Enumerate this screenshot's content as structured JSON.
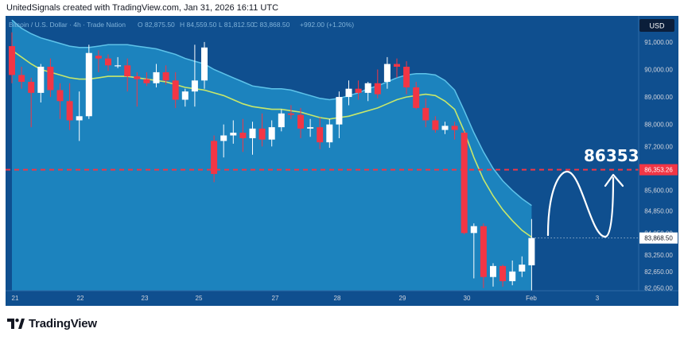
{
  "header": {
    "attribution": "UnitedSignals created with TradingView.com, Jan 31, 2026 16:11 UTC"
  },
  "legend": {
    "symbol": "Bitcoin / U.S. Dollar · 4h · Trade Nation",
    "open": "O 82,875.50",
    "high": "H 84,559.50",
    "low": "L 81,812.50",
    "close": "C 83,868.50",
    "change": "+992.00 (+1.20%)"
  },
  "currency_label": "USD",
  "logo": {
    "text": "TradingView"
  },
  "annotation": {
    "target_text": "86353"
  },
  "colors": {
    "background": "#0f4f8f",
    "band_fill": "#1d86c1",
    "band_top": "#5ec3ea",
    "ma_line": "#c8e86a",
    "up_candle": "#ffffff",
    "down_candle": "#f23645",
    "target_line": "#f23645",
    "price_tag": "#f23645",
    "axis_text": "#d1d4dc"
  },
  "chart_data": {
    "type": "candlestick",
    "title": "",
    "timeframe": "4h",
    "x_ticks": [
      "21",
      "22",
      "23",
      "25",
      "27",
      "28",
      "29",
      "30",
      "Feb",
      "3"
    ],
    "y_ticks": [
      "91,000.00",
      "90,000.00",
      "89,000.00",
      "88,000.00",
      "87,200.00",
      "85,600.00",
      "84,850.00",
      "84,050.00",
      "83,250.00",
      "82,650.00",
      "82,050.00"
    ],
    "ylim": [
      81950,
      91950
    ],
    "target_level": 86353.26,
    "target_label": "86,353.26",
    "current_price": 83868.5,
    "current_label": "83,868.50",
    "candles": [
      {
        "o": 90850,
        "h": 91350,
        "l": 89500,
        "c": 89800
      },
      {
        "o": 89800,
        "h": 90100,
        "l": 89300,
        "c": 89550
      },
      {
        "o": 89550,
        "h": 89700,
        "l": 87900,
        "c": 89150
      },
      {
        "o": 89150,
        "h": 90200,
        "l": 88800,
        "c": 90100
      },
      {
        "o": 90100,
        "h": 90400,
        "l": 89000,
        "c": 89250
      },
      {
        "o": 89250,
        "h": 89500,
        "l": 88200,
        "c": 88850
      },
      {
        "o": 88850,
        "h": 89500,
        "l": 87800,
        "c": 88150
      },
      {
        "o": 88150,
        "h": 89200,
        "l": 87400,
        "c": 88300
      },
      {
        "o": 88300,
        "h": 90900,
        "l": 88200,
        "c": 90600
      },
      {
        "o": 90500,
        "h": 90700,
        "l": 89900,
        "c": 90400
      },
      {
        "o": 90400,
        "h": 90550,
        "l": 89950,
        "c": 90150
      },
      {
        "o": 90150,
        "h": 90450,
        "l": 90050,
        "c": 90150
      },
      {
        "o": 90150,
        "h": 90400,
        "l": 89200,
        "c": 89750
      },
      {
        "o": 89750,
        "h": 89900,
        "l": 88650,
        "c": 89650
      },
      {
        "o": 89650,
        "h": 89900,
        "l": 89400,
        "c": 89500
      },
      {
        "o": 89500,
        "h": 90200,
        "l": 89350,
        "c": 89900
      },
      {
        "o": 89900,
        "h": 90150,
        "l": 89450,
        "c": 89600
      },
      {
        "o": 89600,
        "h": 89900,
        "l": 88600,
        "c": 88900
      },
      {
        "o": 88900,
        "h": 89300,
        "l": 88650,
        "c": 89200
      },
      {
        "o": 89200,
        "h": 90900,
        "l": 88650,
        "c": 89600
      },
      {
        "o": 89600,
        "h": 91000,
        "l": 89300,
        "c": 90800
      },
      {
        "o": 87400,
        "h": 87600,
        "l": 85900,
        "c": 86200
      },
      {
        "o": 87400,
        "h": 88000,
        "l": 86800,
        "c": 87600
      },
      {
        "o": 87600,
        "h": 88150,
        "l": 87300,
        "c": 87700
      },
      {
        "o": 87700,
        "h": 88200,
        "l": 87000,
        "c": 87500
      },
      {
        "o": 87500,
        "h": 88100,
        "l": 86900,
        "c": 87850
      },
      {
        "o": 87850,
        "h": 88400,
        "l": 87200,
        "c": 87450
      },
      {
        "o": 87450,
        "h": 88150,
        "l": 87200,
        "c": 87900
      },
      {
        "o": 87900,
        "h": 88550,
        "l": 87750,
        "c": 88400
      },
      {
        "o": 88400,
        "h": 88700,
        "l": 88200,
        "c": 88350
      },
      {
        "o": 88350,
        "h": 88600,
        "l": 87500,
        "c": 87850
      },
      {
        "o": 87850,
        "h": 88200,
        "l": 87550,
        "c": 87900
      },
      {
        "o": 87900,
        "h": 88250,
        "l": 87100,
        "c": 87350
      },
      {
        "o": 87350,
        "h": 88200,
        "l": 87150,
        "c": 88000
      },
      {
        "o": 88000,
        "h": 89200,
        "l": 87500,
        "c": 89000
      },
      {
        "o": 89000,
        "h": 89600,
        "l": 88700,
        "c": 89300
      },
      {
        "o": 89300,
        "h": 89600,
        "l": 88900,
        "c": 89150
      },
      {
        "o": 89150,
        "h": 89550,
        "l": 88850,
        "c": 89500
      },
      {
        "o": 89500,
        "h": 90000,
        "l": 88950,
        "c": 89100
      },
      {
        "o": 89550,
        "h": 90450,
        "l": 89300,
        "c": 90200
      },
      {
        "o": 90200,
        "h": 90400,
        "l": 89700,
        "c": 90100
      },
      {
        "o": 90100,
        "h": 90300,
        "l": 89100,
        "c": 89350
      },
      {
        "o": 89350,
        "h": 89550,
        "l": 88550,
        "c": 88600
      },
      {
        "o": 88600,
        "h": 88950,
        "l": 87900,
        "c": 88150
      },
      {
        "o": 88150,
        "h": 88300,
        "l": 87700,
        "c": 87800
      },
      {
        "o": 87800,
        "h": 88100,
        "l": 87650,
        "c": 87950
      },
      {
        "o": 87950,
        "h": 88100,
        "l": 87450,
        "c": 87800
      },
      {
        "o": 87700,
        "h": 87800,
        "l": 84000,
        "c": 84050
      },
      {
        "o": 84050,
        "h": 84400,
        "l": 82400,
        "c": 84300
      },
      {
        "o": 84300,
        "h": 84400,
        "l": 82050,
        "c": 82450
      },
      {
        "o": 82450,
        "h": 82950,
        "l": 82100,
        "c": 82850
      },
      {
        "o": 82850,
        "h": 82900,
        "l": 82100,
        "c": 82300
      },
      {
        "o": 82300,
        "h": 83050,
        "l": 82150,
        "c": 82650
      },
      {
        "o": 82650,
        "h": 83200,
        "l": 82450,
        "c": 82900
      },
      {
        "o": 82875.5,
        "h": 84559.5,
        "l": 81812.5,
        "c": 83868.5
      }
    ],
    "moving_average": [
      90700,
      90450,
      90200,
      90000,
      89900,
      89800,
      89700,
      89650,
      89650,
      89700,
      89750,
      89750,
      89750,
      89700,
      89650,
      89600,
      89550,
      89450,
      89350,
      89300,
      89250,
      89150,
      89050,
      88900,
      88750,
      88650,
      88600,
      88550,
      88550,
      88500,
      88450,
      88350,
      88250,
      88200,
      88250,
      88300,
      88400,
      88500,
      88600,
      88750,
      88900,
      89000,
      89050,
      89100,
      89050,
      88850,
      88550,
      87750,
      86800,
      86000,
      85400,
      84900,
      84500,
      84150,
      83900
    ],
    "band_top": [
      91800,
      91500,
      91300,
      91150,
      91050,
      90950,
      90850,
      90800,
      90800,
      90850,
      90900,
      90900,
      90900,
      90850,
      90800,
      90750,
      90650,
      90550,
      90400,
      90300,
      90200,
      90000,
      89850,
      89700,
      89550,
      89400,
      89350,
      89300,
      89300,
      89250,
      89150,
      89050,
      88950,
      88900,
      88950,
      89050,
      89150,
      89300,
      89400,
      89550,
      89700,
      89800,
      89850,
      89850,
      89800,
      89600,
      89250,
      88500,
      87700,
      87000,
      86400,
      85950,
      85600,
      85300,
      85050
    ]
  }
}
